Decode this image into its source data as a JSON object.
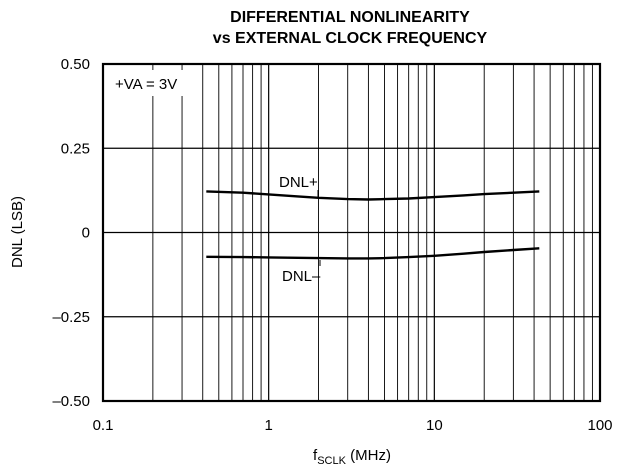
{
  "chart_data": {
    "type": "line",
    "title_lines": [
      "DIFFERENTIAL NONLINEARITY",
      "vs EXTERNAL CLOCK FREQUENCY"
    ],
    "xlabel_main": "f",
    "xlabel_sub": "SCLK",
    "xlabel_unit": " (MHz)",
    "ylabel": "DNL (LSB)",
    "x_scale": "log",
    "xlim": [
      0.1,
      100
    ],
    "ylim": [
      -0.5,
      0.5
    ],
    "grid": true,
    "x_ticks": [
      {
        "value": 0.1,
        "label": "0.1"
      },
      {
        "value": 1,
        "label": "1"
      },
      {
        "value": 10,
        "label": "10"
      },
      {
        "value": 100,
        "label": "100"
      }
    ],
    "y_ticks": [
      {
        "value": 0.5,
        "label": "0.50"
      },
      {
        "value": 0.25,
        "label": "0.25"
      },
      {
        "value": 0,
        "label": "0"
      },
      {
        "value": -0.25,
        "label": "–0.25"
      },
      {
        "value": -0.5,
        "label": "–0.50"
      }
    ],
    "annotation": "+VA = 3V",
    "series": [
      {
        "name": "DNL+",
        "x": [
          0.42,
          0.7,
          1,
          1.5,
          2,
          3,
          4,
          5,
          7,
          10,
          15,
          20,
          30,
          43
        ],
        "y": [
          0.122,
          0.118,
          0.113,
          0.107,
          0.103,
          0.099,
          0.098,
          0.099,
          0.101,
          0.105,
          0.11,
          0.114,
          0.118,
          0.122
        ]
      },
      {
        "name": "DNL–",
        "x": [
          0.42,
          0.7,
          1,
          1.5,
          2,
          3,
          4,
          5,
          7,
          10,
          15,
          20,
          30,
          43
        ],
        "y": [
          -0.072,
          -0.073,
          -0.074,
          -0.075,
          -0.076,
          -0.077,
          -0.077,
          -0.076,
          -0.073,
          -0.069,
          -0.063,
          -0.058,
          -0.052,
          -0.047
        ]
      }
    ]
  }
}
